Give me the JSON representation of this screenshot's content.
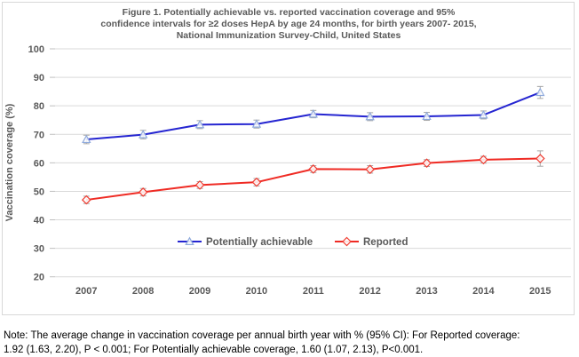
{
  "title_lines": [
    "Figure 1. Potentially achievable vs. reported vaccination coverage and 95%",
    "confidence intervals for ≥2 doses HepA by age 24 months, for birth years 2007- 2015,",
    "National Immunization Survey-Child, United States"
  ],
  "note": {
    "lines": [
      "Note: The average change in vaccination coverage per annual birth year with % (95% CI): For Reported coverage:",
      "1.92 (1.63, 2.20), P < 0.001; For Potentially achievable coverage, 1.60 (1.07, 2.13), P<0.001."
    ]
  },
  "colors": {
    "title_text": "#595959",
    "axis_text": "#595959",
    "gridline": "#d9d9d9",
    "tick": "#bfbfbf",
    "error_bar": "#a6a6a6",
    "frame_border": "#d8d8d8",
    "note_text": "#000000"
  },
  "chart_data": {
    "type": "line",
    "title": "Figure 1. Potentially achievable vs. reported vaccination coverage and 95% confidence intervals for ≥2 doses HepA by age 24 months, for birth years 2007- 2015, National Immunization Survey-Child, United States",
    "xlabel": "",
    "ylabel": "Vaccination coverage (%)",
    "x": [
      2007,
      2008,
      2009,
      2010,
      2011,
      2012,
      2013,
      2014,
      2015
    ],
    "ylim": [
      20,
      100
    ],
    "yticks": [
      20,
      30,
      40,
      50,
      60,
      70,
      80,
      90,
      100
    ],
    "grid": true,
    "error_bars": true,
    "legend_position": "inside-bottom-center",
    "series": [
      {
        "name": "Potentially achievable",
        "color": "#2525d1",
        "marker": "triangle",
        "marker_color": "#8faadc",
        "values": [
          68.2,
          69.9,
          73.4,
          73.6,
          77.1,
          76.2,
          76.3,
          76.8,
          84.7
        ],
        "ci_halfwidth": [
          1.5,
          1.5,
          1.4,
          1.4,
          1.3,
          1.4,
          1.4,
          1.4,
          2.1
        ]
      },
      {
        "name": "Reported",
        "color": "#ef2b24",
        "marker": "diamond",
        "marker_color": "#f03b30",
        "values": [
          47.0,
          49.7,
          52.2,
          53.2,
          57.8,
          57.7,
          59.9,
          61.1,
          61.5
        ],
        "ci_halfwidth": [
          1.3,
          1.3,
          1.2,
          1.3,
          1.2,
          1.3,
          1.2,
          1.2,
          2.7
        ]
      }
    ]
  }
}
